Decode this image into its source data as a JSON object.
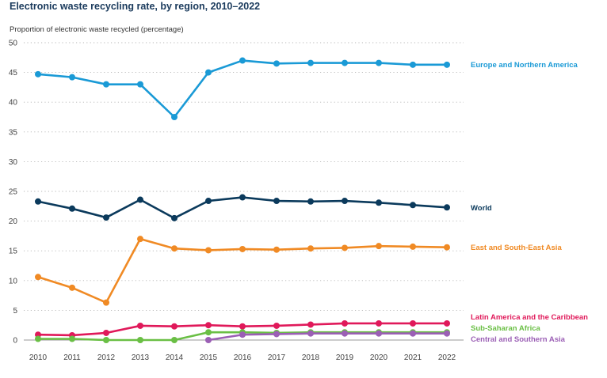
{
  "chart_data": {
    "type": "line",
    "title": "Electronic waste recycling rate, by region, 2010–2022",
    "ylabel": "Proportion of electronic waste recycled (percentage)",
    "xlabel": "",
    "x": [
      2010,
      2011,
      2012,
      2013,
      2014,
      2015,
      2016,
      2017,
      2018,
      2019,
      2020,
      2021,
      2022
    ],
    "ylim": [
      0,
      50
    ],
    "yticks": [
      0,
      5,
      10,
      15,
      20,
      25,
      30,
      35,
      40,
      45,
      50
    ],
    "grid": "horizontal dotted",
    "legend": "direct labels at right end of lines",
    "series": [
      {
        "name": "Europe and Northern America",
        "color": "#1a9ad6",
        "values": [
          44.7,
          44.2,
          43.0,
          43.0,
          37.5,
          45.0,
          47.0,
          46.5,
          46.6,
          46.6,
          46.6,
          46.3,
          46.3
        ]
      },
      {
        "name": "World",
        "color": "#0b3a5c",
        "values": [
          23.3,
          22.1,
          20.6,
          23.6,
          20.5,
          23.4,
          24.0,
          23.4,
          23.3,
          23.4,
          23.1,
          22.7,
          22.3
        ]
      },
      {
        "name": "East and South-East Asia",
        "color": "#f08a24",
        "values": [
          10.6,
          8.8,
          6.3,
          17.0,
          15.4,
          15.1,
          15.3,
          15.2,
          15.4,
          15.5,
          15.8,
          15.7,
          15.6
        ]
      },
      {
        "name": "Latin America and the Caribbean",
        "color": "#e0195a",
        "values": [
          0.9,
          0.8,
          1.2,
          2.4,
          2.3,
          2.5,
          2.3,
          2.4,
          2.6,
          2.8,
          2.8,
          2.8,
          2.8
        ]
      },
      {
        "name": "Sub-Saharan Africa",
        "color": "#6abf45",
        "values": [
          0.2,
          0.2,
          0.0,
          0.0,
          0.0,
          1.3,
          1.3,
          1.2,
          1.3,
          1.3,
          1.3,
          1.3,
          1.3
        ]
      },
      {
        "name": "Central and Southern Asia",
        "color": "#9b5fb5",
        "values": [
          null,
          null,
          null,
          null,
          null,
          0.0,
          0.9,
          1.0,
          1.1,
          1.1,
          1.1,
          1.1,
          1.1
        ]
      }
    ]
  }
}
